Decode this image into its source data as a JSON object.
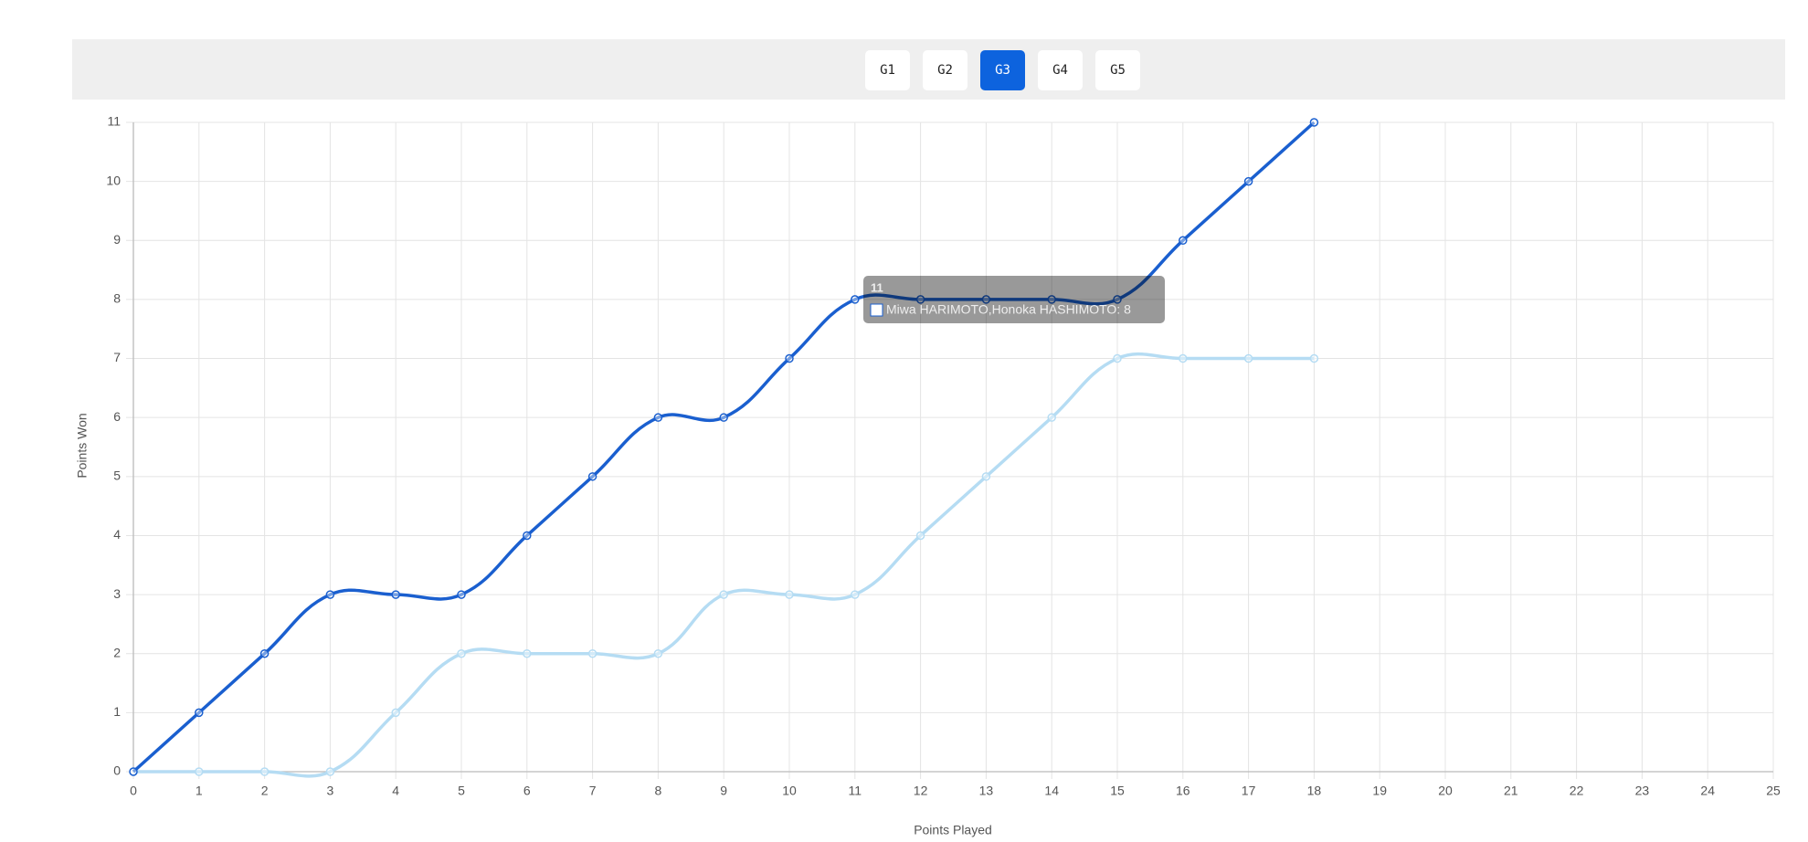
{
  "tabs": {
    "buttons": [
      "G1",
      "G2",
      "G3",
      "G4",
      "G5"
    ],
    "active": 2
  },
  "chart_data": {
    "type": "line",
    "x_label": "Points Played",
    "y_label": "Points Won",
    "x": [
      0,
      1,
      2,
      3,
      4,
      5,
      6,
      7,
      8,
      9,
      10,
      11,
      12,
      13,
      14,
      15,
      16,
      17,
      18
    ],
    "series": [
      {
        "color": "#1a5fcf",
        "values": [
          0,
          1,
          2,
          3,
          3,
          3,
          4,
          5,
          6,
          6,
          7,
          8,
          8,
          8,
          8,
          8,
          9,
          10,
          11
        ]
      },
      {
        "color": "#b5dcf3",
        "values": [
          0,
          0,
          0,
          0,
          1,
          2,
          2,
          2,
          2,
          3,
          3,
          3,
          4,
          5,
          6,
          7,
          7,
          7,
          7
        ]
      }
    ],
    "xlim": [
      0,
      25
    ],
    "xticks": [
      0,
      1,
      2,
      3,
      4,
      5,
      6,
      7,
      8,
      9,
      10,
      11,
      12,
      13,
      14,
      15,
      16,
      17,
      18,
      19,
      20,
      21,
      22,
      23,
      24,
      25
    ],
    "ylim": [
      0,
      11
    ],
    "yticks": [
      0,
      1,
      2,
      3,
      4,
      5,
      6,
      7,
      8,
      9,
      10,
      11
    ],
    "grid": true,
    "smooth": true,
    "tooltip": {
      "title": "11",
      "label": "Miwa HARIMOTO,Honoka HASHIMOTO: 8"
    }
  }
}
